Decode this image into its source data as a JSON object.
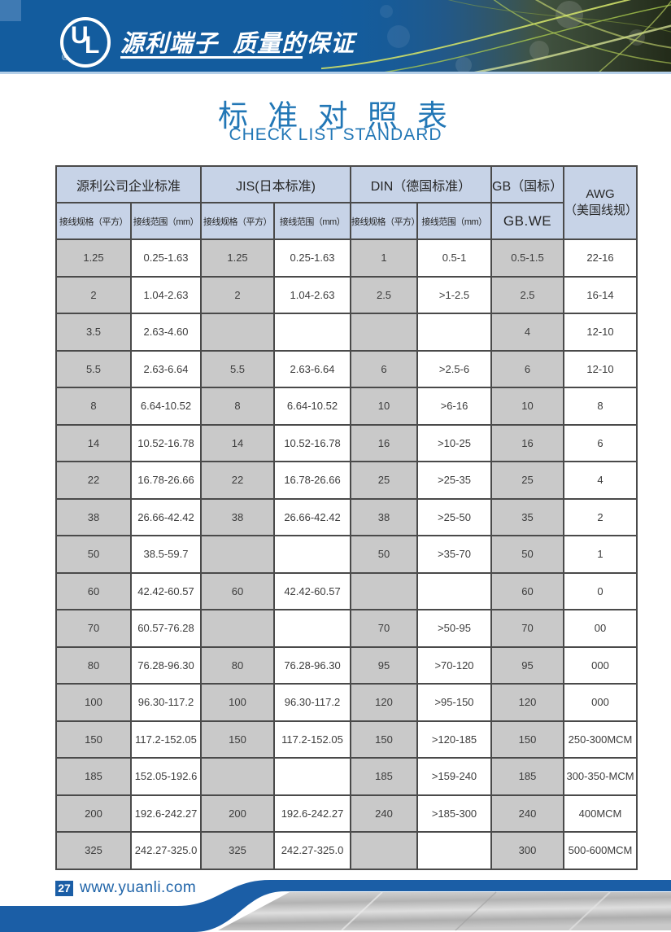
{
  "header": {
    "logo_u": "U",
    "logo_l": "L",
    "logo_registered": "®",
    "slogan": "源利端子  质量的保证"
  },
  "title": {
    "zh": "标 准 对 照 表",
    "en": "CHECK LIST STANDARD"
  },
  "table": {
    "groups": [
      {
        "label": "源利公司企业标准"
      },
      {
        "label": "JIS(日本标准)"
      },
      {
        "label": "DIN（德国标准）"
      },
      {
        "label": "GB（国标）"
      },
      {
        "label": "AWG",
        "label2": "（美国线规）"
      }
    ],
    "subheaders": [
      "接线规格（平方）",
      "接线范围（mm）",
      "接线规格（平方）",
      "接线范围（mm）",
      "接线规格（平方）",
      "接线范围（mm）",
      "GB.WE"
    ],
    "rows": [
      [
        "1.25",
        "0.25-1.63",
        "1.25",
        "0.25-1.63",
        "1",
        "0.5-1",
        "0.5-1.5",
        "22-16"
      ],
      [
        "2",
        "1.04-2.63",
        "2",
        "1.04-2.63",
        "2.5",
        ">1-2.5",
        "2.5",
        "16-14"
      ],
      [
        "3.5",
        "2.63-4.60",
        "",
        "",
        "",
        "",
        "4",
        "12-10"
      ],
      [
        "5.5",
        "2.63-6.64",
        "5.5",
        "2.63-6.64",
        "6",
        ">2.5-6",
        "6",
        "12-10"
      ],
      [
        "8",
        "6.64-10.52",
        "8",
        "6.64-10.52",
        "10",
        ">6-16",
        "10",
        "8"
      ],
      [
        "14",
        "10.52-16.78",
        "14",
        "10.52-16.78",
        "16",
        ">10-25",
        "16",
        "6"
      ],
      [
        "22",
        "16.78-26.66",
        "22",
        "16.78-26.66",
        "25",
        ">25-35",
        "25",
        "4"
      ],
      [
        "38",
        "26.66-42.42",
        "38",
        "26.66-42.42",
        "38",
        ">25-50",
        "35",
        "2"
      ],
      [
        "50",
        "38.5-59.7",
        "",
        "",
        "50",
        ">35-70",
        "50",
        "1"
      ],
      [
        "60",
        "42.42-60.57",
        "60",
        "42.42-60.57",
        "",
        "",
        "60",
        "0"
      ],
      [
        "70",
        "60.57-76.28",
        "",
        "",
        "70",
        ">50-95",
        "70",
        "00"
      ],
      [
        "80",
        "76.28-96.30",
        "80",
        "76.28-96.30",
        "95",
        ">70-120",
        "95",
        "000"
      ],
      [
        "100",
        "96.30-117.2",
        "100",
        "96.30-117.2",
        "120",
        ">95-150",
        "120",
        "000"
      ],
      [
        "150",
        "117.2-152.05",
        "150",
        "117.2-152.05",
        "150",
        ">120-185",
        "150",
        "250-300MCM"
      ],
      [
        "185",
        "152.05-192.6",
        "",
        "",
        "185",
        ">159-240",
        "185",
        "300-350-MCM"
      ],
      [
        "200",
        "192.6-242.27",
        "200",
        "192.6-242.27",
        "240",
        ">185-300",
        "240",
        "400MCM"
      ],
      [
        "325",
        "242.27-325.0",
        "325",
        "242.27-325.0",
        "",
        "",
        "300",
        "500-600MCM"
      ]
    ]
  },
  "footer": {
    "page_number": "27",
    "website": "www.yuanli.com"
  },
  "colors": {
    "header_blue": "#135c9e",
    "title_blue": "#2277b6",
    "table_header_bg": "#c7d3e7",
    "gray_cell": "#c9c9c9",
    "border": "#4a4a4a",
    "footer_blue": "#1b5ea6"
  }
}
